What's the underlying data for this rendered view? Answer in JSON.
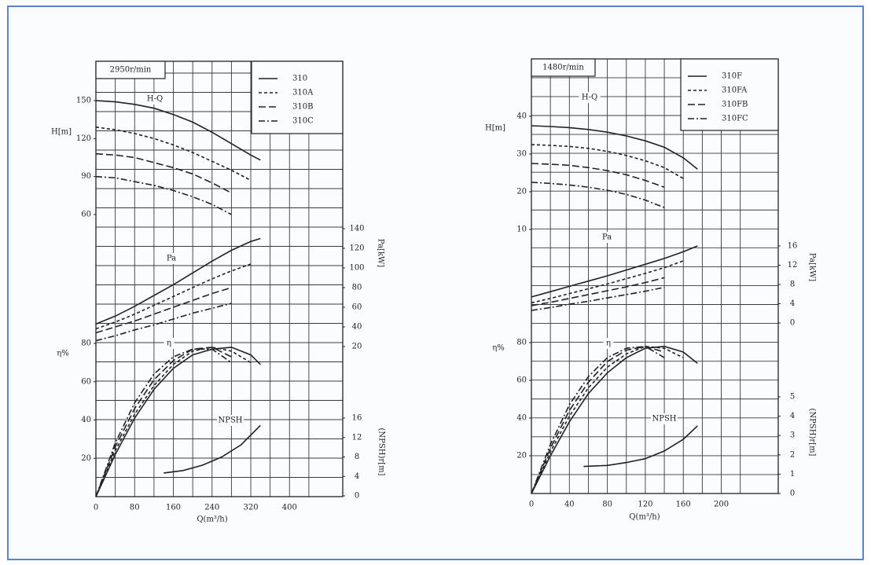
{
  "chart_data": [
    {
      "type": "line",
      "speed": "2950r/min",
      "x_label": "Q(m³/h)",
      "xlim": [
        0,
        510
      ],
      "xticks": [
        0,
        80,
        160,
        240,
        320,
        400
      ],
      "x": [
        0,
        40,
        80,
        120,
        160,
        200,
        240,
        280,
        320,
        340
      ],
      "axes": {
        "H": {
          "label": "H[m]",
          "curve_label": "H-Q",
          "ylim": [
            60,
            150
          ],
          "yticks": [
            60,
            90,
            120,
            150
          ]
        },
        "Pa": {
          "label": "Pa[kW]",
          "curve_label": "Pa",
          "ylim": [
            20,
            140
          ],
          "yticks": [
            20,
            40,
            60,
            80,
            100,
            120,
            140
          ]
        },
        "eta": {
          "label": "η%",
          "curve_label": "η",
          "ylim": [
            0,
            80
          ],
          "yticks": [
            20,
            40,
            60,
            80
          ]
        },
        "NPSH": {
          "label": "(NPSH)r[m]",
          "curve_label": "NPSH",
          "ylim": [
            0,
            16
          ],
          "yticks": [
            0,
            4,
            8,
            12,
            16
          ]
        }
      },
      "series": [
        {
          "name": "310",
          "color": "#222222",
          "dash": "solid",
          "H": [
            150,
            149,
            147,
            144,
            139,
            133,
            125,
            116,
            107,
            103
          ],
          "Pa": [
            43,
            51,
            61,
            72,
            83,
            95,
            107,
            118,
            127,
            130
          ],
          "eta": [
            0,
            22,
            41,
            56,
            67,
            74,
            77,
            78,
            74,
            69
          ]
        },
        {
          "name": "310A",
          "color": "#222222",
          "dash": "short",
          "H": [
            129,
            127,
            124,
            120,
            115,
            109,
            102,
            95,
            87,
            null
          ],
          "Pa": [
            38,
            45,
            53,
            62,
            71,
            80,
            89,
            97,
            104,
            null
          ],
          "eta": [
            0,
            24,
            43,
            58,
            69,
            76,
            78,
            76,
            70,
            null
          ]
        },
        {
          "name": "310B",
          "color": "#222222",
          "dash": "long",
          "H": [
            108,
            107,
            105,
            101,
            97,
            92,
            85,
            77,
            null,
            null
          ],
          "Pa": [
            34,
            40,
            46,
            53,
            60,
            67,
            74,
            80,
            null,
            null
          ],
          "eta": [
            0,
            26,
            46,
            61,
            71,
            77,
            78,
            73,
            null,
            null
          ]
        },
        {
          "name": "310C",
          "color": "#222222",
          "dash": "dash-dot",
          "H": [
            90,
            89,
            86,
            83,
            79,
            74,
            68,
            60,
            null,
            null
          ],
          "Pa": [
            26,
            31,
            37,
            42,
            48,
            54,
            59,
            64,
            null,
            null
          ],
          "eta": [
            0,
            28,
            49,
            64,
            73,
            77,
            77,
            70,
            null,
            null
          ]
        }
      ],
      "npsh": {
        "x": [
          140,
          180,
          220,
          260,
          300,
          340
        ],
        "values": [
          4.7,
          5.2,
          6.3,
          8,
          10.5,
          14.5
        ]
      }
    },
    {
      "type": "line",
      "speed": "1480r/min",
      "x_label": "Q(m³/h)",
      "xlim": [
        0,
        260
      ],
      "xticks": [
        0,
        40,
        80,
        120,
        160,
        200
      ],
      "x": [
        0,
        20,
        40,
        60,
        80,
        100,
        120,
        140,
        160,
        175
      ],
      "axes": {
        "H": {
          "label": "H[m]",
          "curve_label": "H-Q",
          "ylim": [
            10,
            40
          ],
          "yticks": [
            10,
            20,
            30,
            40
          ]
        },
        "Pa": {
          "label": "Pa[kW]",
          "curve_label": "Pa",
          "ylim": [
            0,
            16
          ],
          "yticks": [
            0,
            4,
            8,
            12,
            16
          ]
        },
        "eta": {
          "label": "η%",
          "curve_label": "η",
          "ylim": [
            0,
            80
          ],
          "yticks": [
            20,
            40,
            60,
            80
          ]
        },
        "NPSH": {
          "label": "(NPSH)r[m]",
          "curve_label": "NPSH",
          "ylim": [
            0,
            5
          ],
          "yticks": [
            0,
            1,
            2,
            3,
            4,
            5
          ]
        }
      },
      "series": [
        {
          "name": "310F",
          "color": "#222222",
          "dash": "solid",
          "H": [
            37.5,
            37.3,
            37,
            36.5,
            35.8,
            34.8,
            33.5,
            31.8,
            29,
            26
          ],
          "Pa": [
            5.4,
            6.5,
            7.6,
            8.7,
            9.8,
            11,
            12.2,
            13.4,
            14.8,
            16
          ],
          "eta": [
            0,
            20,
            38,
            53,
            64,
            72,
            77,
            78,
            75,
            69
          ]
        },
        {
          "name": "310FA",
          "color": "#222222",
          "dash": "short",
          "H": [
            32.5,
            32.3,
            32,
            31.5,
            30.7,
            29.6,
            28.2,
            26.4,
            23.5,
            null
          ],
          "Pa": [
            4.2,
            5.1,
            6.1,
            7.1,
            8.1,
            9.2,
            10.3,
            11.5,
            12.9,
            null
          ],
          "eta": [
            0,
            22,
            41,
            56,
            67,
            74,
            78,
            77,
            72,
            null
          ]
        },
        {
          "name": "310FB",
          "color": "#222222",
          "dash": "long",
          "H": [
            27.5,
            27.3,
            27,
            26.4,
            25.6,
            24.5,
            23,
            21.2,
            null,
            null
          ],
          "Pa": [
            3.6,
            4.3,
            5.1,
            5.9,
            6.7,
            7.5,
            8.4,
            9.4,
            null,
            null
          ],
          "eta": [
            0,
            24,
            44,
            59,
            70,
            76,
            78,
            75,
            null,
            null
          ]
        },
        {
          "name": "310FC",
          "color": "#222222",
          "dash": "dash-dot",
          "H": [
            22.5,
            22.2,
            21.8,
            21.2,
            20.4,
            19.3,
            17.8,
            15.8,
            null,
            null
          ],
          "Pa": [
            2.6,
            3.2,
            3.9,
            4.5,
            5.2,
            5.9,
            6.6,
            7.4,
            null,
            null
          ],
          "eta": [
            0,
            26,
            47,
            62,
            72,
            77,
            78,
            72,
            null,
            null
          ]
        }
      ],
      "npsh": {
        "x": [
          55,
          80,
          100,
          120,
          140,
          160,
          175
        ],
        "values": [
          1.4,
          1.45,
          1.6,
          1.8,
          2.2,
          2.8,
          3.5
        ]
      }
    }
  ]
}
